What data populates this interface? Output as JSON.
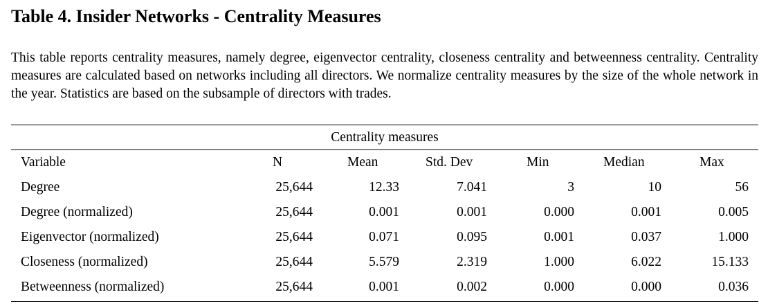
{
  "title": "Table 4. Insider Networks - Centrality Measures",
  "description": "This table reports centrality measures, namely degree, eigenvector centrality, closeness centrality and betweenness centrality. Centrality measures are calculated based on networks including all directors. We normalize centrality measures by the size of the whole network in the year. Statistics are based on the subsample of directors with trades.",
  "table": {
    "group_header": "Centrality measures",
    "columns": [
      "Variable",
      "N",
      "Mean",
      "Std. Dev",
      "Min",
      "Median",
      "Max"
    ],
    "rows": [
      [
        "Degree",
        "25,644",
        "12.33",
        "7.041",
        "3",
        "10",
        "56"
      ],
      [
        "Degree (normalized)",
        "25,644",
        "0.001",
        "0.001",
        "0.000",
        "0.001",
        "0.005"
      ],
      [
        "Eigenvector (normalized)",
        "25,644",
        "0.071",
        "0.095",
        "0.001",
        "0.037",
        "1.000"
      ],
      [
        "Closeness (normalized)",
        "25,644",
        "5.579",
        "2.319",
        "1.000",
        "6.022",
        "15.133"
      ],
      [
        "Betweenness (normalized)",
        "25,644",
        "0.001",
        "0.002",
        "0.000",
        "0.000",
        "0.036"
      ]
    ]
  }
}
